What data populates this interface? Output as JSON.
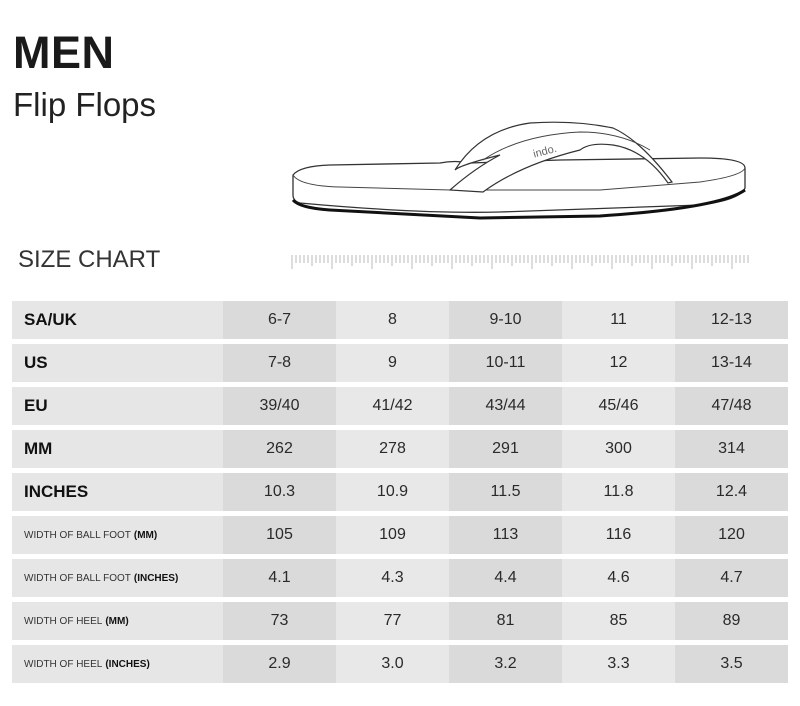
{
  "header": {
    "title": "MEN",
    "subtitle": "Flip Flops",
    "section": "SIZE CHART"
  },
  "illustration": {
    "brand_on_strap": "indo."
  },
  "table": {
    "rows": [
      {
        "label": "SA/UK",
        "suffix": "",
        "style": "big",
        "values": [
          "6-7",
          "8",
          "9-10",
          "11",
          "12-13"
        ]
      },
      {
        "label": "US",
        "suffix": "",
        "style": "big",
        "values": [
          "7-8",
          "9",
          "10-11",
          "12",
          "13-14"
        ]
      },
      {
        "label": "EU",
        "suffix": "",
        "style": "big",
        "values": [
          "39/40",
          "41/42",
          "43/44",
          "45/46",
          "47/48"
        ]
      },
      {
        "label": "MM",
        "suffix": "",
        "style": "big",
        "values": [
          "262",
          "278",
          "291",
          "300",
          "314"
        ]
      },
      {
        "label": "INCHES",
        "suffix": "",
        "style": "big",
        "values": [
          "10.3",
          "10.9",
          "11.5",
          "11.8",
          "12.4"
        ]
      },
      {
        "label": "WIDTH OF BALL FOOT",
        "suffix": "(MM)",
        "style": "small",
        "values": [
          "105",
          "109",
          "113",
          "116",
          "120"
        ]
      },
      {
        "label": "WIDTH OF BALL FOOT",
        "suffix": "(INCHES)",
        "style": "small",
        "values": [
          "4.1",
          "4.3",
          "4.4",
          "4.6",
          "4.7"
        ]
      },
      {
        "label": "WIDTH OF HEEL",
        "suffix": "(MM)",
        "style": "small",
        "values": [
          "73",
          "77",
          "81",
          "85",
          "89"
        ]
      },
      {
        "label": "WIDTH OF HEEL",
        "suffix": "(INCHES)",
        "style": "small",
        "values": [
          "2.9",
          "3.0",
          "3.2",
          "3.3",
          "3.5"
        ]
      }
    ]
  }
}
